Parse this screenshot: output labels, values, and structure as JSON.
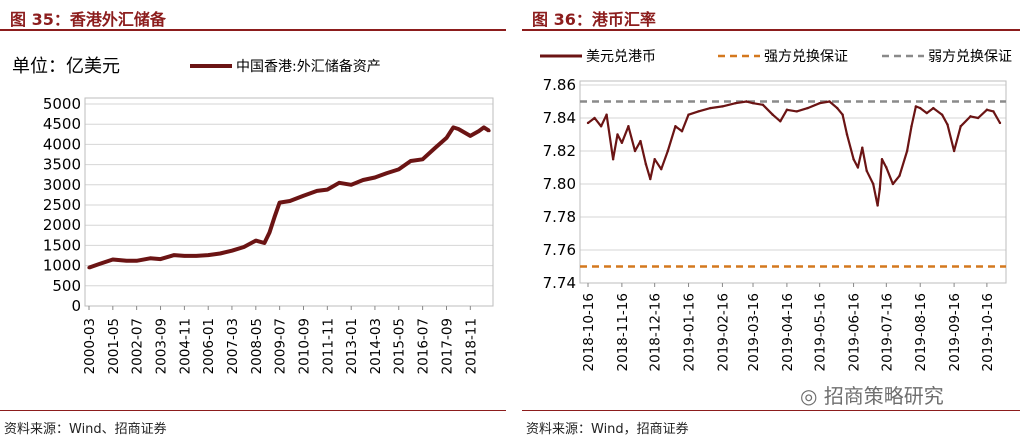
{
  "left": {
    "figure_title": "图 35：香港外汇储备",
    "source": "资料来源：Wind、招商证券",
    "unit_label": "单位：亿美元",
    "legend_label": "中国香港:外汇储备资产",
    "chart_data": {
      "type": "line",
      "ylabel": "单位：亿美元",
      "ylim": [
        0,
        5000
      ],
      "yticks": [
        "0",
        "500",
        "1000",
        "1500",
        "2000",
        "2500",
        "3000",
        "3500",
        "4000",
        "4500",
        "5000"
      ],
      "xticks": [
        "2000-03",
        "2001-05",
        "2002-07",
        "2003-09",
        "2004-11",
        "2006-01",
        "2007-03",
        "2008-05",
        "2009-07",
        "2010-09",
        "2011-11",
        "2013-01",
        "2014-03",
        "2015-05",
        "2016-07",
        "2017-09",
        "2018-11"
      ],
      "legend_position": "top",
      "grid": true,
      "color": "#6b1414",
      "series": [
        {
          "name": "中国香港:外汇储备资产",
          "x": [
            "2000-03",
            "2000-09",
            "2001-05",
            "2002-01",
            "2002-07",
            "2003-03",
            "2003-09",
            "2004-05",
            "2004-11",
            "2005-06",
            "2006-01",
            "2006-08",
            "2007-03",
            "2007-10",
            "2008-05",
            "2008-10",
            "2009-01",
            "2009-04",
            "2009-07",
            "2010-01",
            "2010-09",
            "2011-05",
            "2011-11",
            "2012-06",
            "2013-01",
            "2013-08",
            "2014-03",
            "2014-10",
            "2015-05",
            "2015-12",
            "2016-07",
            "2017-02",
            "2017-09",
            "2018-01",
            "2018-04",
            "2018-11",
            "2019-04",
            "2019-07",
            "2019-10"
          ],
          "values": [
            950,
            1040,
            1150,
            1120,
            1120,
            1180,
            1160,
            1260,
            1240,
            1240,
            1260,
            1300,
            1370,
            1460,
            1620,
            1560,
            1820,
            2200,
            2560,
            2600,
            2730,
            2850,
            2880,
            3050,
            3000,
            3120,
            3180,
            3290,
            3380,
            3590,
            3630,
            3900,
            4160,
            4420,
            4380,
            4210,
            4330,
            4420,
            4340
          ]
        }
      ]
    }
  },
  "right": {
    "figure_title": "图 36：港币汇率",
    "source": "资料来源：Wind，招商证券",
    "chart_data": {
      "type": "line",
      "ylim": [
        7.74,
        7.86
      ],
      "yticks": [
        "7.74",
        "7.76",
        "7.78",
        "7.80",
        "7.82",
        "7.84",
        "7.86"
      ],
      "xticks": [
        "2018-10-16",
        "2018-11-16",
        "2018-12-16",
        "2019-01-16",
        "2019-02-16",
        "2019-03-16",
        "2019-04-16",
        "2019-05-16",
        "2019-06-16",
        "2019-07-16",
        "2019-08-16",
        "2019-09-16",
        "2019-10-16"
      ],
      "legend_position": "top",
      "grid": true,
      "series": [
        {
          "name": "美元兑港币",
          "color": "#6b1414",
          "style": "solid",
          "x": [
            "2018-10-16",
            "2018-10-22",
            "2018-10-28",
            "2018-11-02",
            "2018-11-08",
            "2018-11-12",
            "2018-11-16",
            "2018-11-22",
            "2018-11-28",
            "2018-12-03",
            "2018-12-08",
            "2018-12-12",
            "2018-12-16",
            "2018-12-22",
            "2018-12-28",
            "2019-01-04",
            "2019-01-10",
            "2019-01-16",
            "2019-01-25",
            "2019-02-05",
            "2019-02-16",
            "2019-02-28",
            "2019-03-10",
            "2019-03-16",
            "2019-03-25",
            "2019-04-03",
            "2019-04-10",
            "2019-04-16",
            "2019-04-25",
            "2019-05-05",
            "2019-05-16",
            "2019-05-25",
            "2019-06-01",
            "2019-06-06",
            "2019-06-10",
            "2019-06-16",
            "2019-06-20",
            "2019-06-24",
            "2019-06-28",
            "2019-07-04",
            "2019-07-08",
            "2019-07-10",
            "2019-07-12",
            "2019-07-16",
            "2019-07-22",
            "2019-07-28",
            "2019-08-04",
            "2019-08-08",
            "2019-08-12",
            "2019-08-16",
            "2019-08-22",
            "2019-08-28",
            "2019-09-05",
            "2019-09-10",
            "2019-09-16",
            "2019-09-22",
            "2019-10-01",
            "2019-10-08",
            "2019-10-16",
            "2019-10-22",
            "2019-10-28"
          ],
          "values": [
            7.837,
            7.84,
            7.835,
            7.842,
            7.815,
            7.83,
            7.825,
            7.835,
            7.82,
            7.826,
            7.812,
            7.803,
            7.815,
            7.809,
            7.82,
            7.835,
            7.832,
            7.842,
            7.844,
            7.846,
            7.847,
            7.849,
            7.85,
            7.849,
            7.848,
            7.842,
            7.838,
            7.845,
            7.844,
            7.846,
            7.849,
            7.85,
            7.846,
            7.842,
            7.83,
            7.815,
            7.81,
            7.822,
            7.808,
            7.8,
            7.787,
            7.797,
            7.815,
            7.81,
            7.8,
            7.805,
            7.82,
            7.835,
            7.847,
            7.846,
            7.843,
            7.846,
            7.842,
            7.836,
            7.82,
            7.835,
            7.841,
            7.84,
            7.845,
            7.844,
            7.837
          ]
        },
        {
          "name": "强方兑换保证",
          "color": "#d4781e",
          "style": "dashed",
          "constant": 7.75
        },
        {
          "name": "弱方兑换保证",
          "color": "#8a8a8a",
          "style": "dashed",
          "constant": 7.85
        }
      ]
    }
  },
  "watermark": "招商策略研究"
}
